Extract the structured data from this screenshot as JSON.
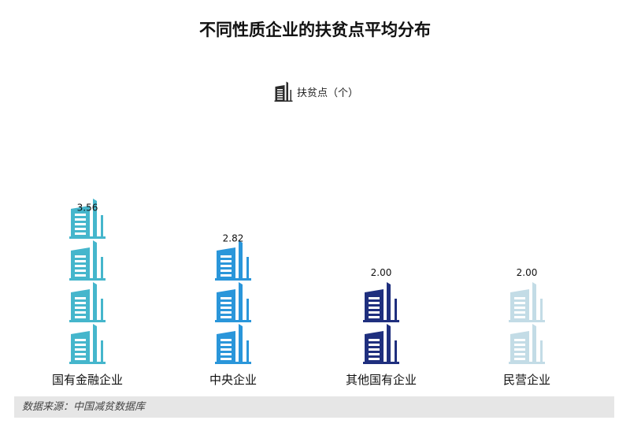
{
  "title": "不同性质企业的扶贫点平均分布",
  "legend": {
    "icon": "building-icon",
    "label": "扶贫点（个）"
  },
  "source": "数据来源：中国减贫数据库",
  "chart_data": {
    "type": "bar",
    "icon": "building-icon",
    "title": "不同性质企业的扶贫点平均分布",
    "ylabel": "扶贫点（个）",
    "categories": [
      "国有金融企业",
      "中央企业",
      "其他国有企业",
      "民营企业"
    ],
    "values": [
      3.56,
      2.82,
      2.0,
      2.0
    ],
    "value_labels": [
      "3.56",
      "2.82",
      "2.00",
      "2.00"
    ],
    "colors": [
      "#45b6cc",
      "#2a96da",
      "#1f2f7e",
      "#c3dce6"
    ],
    "grid": false,
    "legend_position": "top-center"
  }
}
